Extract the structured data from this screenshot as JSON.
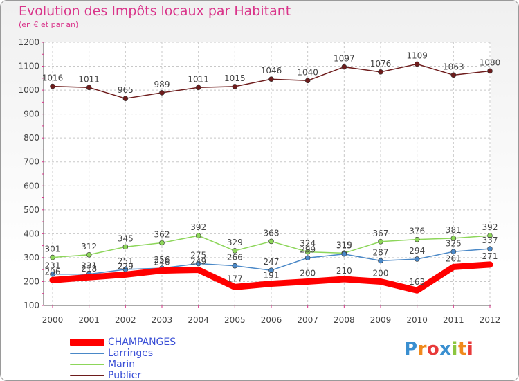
{
  "chart_data": {
    "type": "line",
    "title": "Evolution des Impôts locaux par Habitant",
    "subtitle": "(en € et par an)",
    "xlabel": "",
    "ylabel": "",
    "ylim": [
      100,
      1200
    ],
    "yticks": [
      "100",
      "200",
      "300",
      "400",
      "500",
      "600",
      "700",
      "800",
      "900",
      "1000",
      "1100",
      "1200"
    ],
    "categories": [
      "2000",
      "2001",
      "2002",
      "2003",
      "2004",
      "2005",
      "2006",
      "2007",
      "2008",
      "2009",
      "2010",
      "2011",
      "2012"
    ],
    "series": [
      {
        "name": "CHAMPANGES",
        "color": "#ff0000",
        "values": [
          206,
          218,
          229,
          246,
          249,
          177,
          191,
          200,
          210,
          200,
          163,
          261,
          271
        ],
        "labels": [
          "206",
          "218",
          "229",
          "246",
          "249",
          "177",
          "191",
          "200",
          "210",
          "200",
          "163",
          "261",
          "271"
        ]
      },
      {
        "name": "Larringes",
        "color": "#4a88c7",
        "values": [
          231,
          231,
          251,
          256,
          275,
          266,
          247,
          299,
          315,
          287,
          294,
          325,
          337
        ],
        "labels": [
          "231",
          "231",
          "251",
          "256",
          "275",
          "266",
          "247",
          "299",
          "315",
          "287",
          "294",
          "325",
          "337"
        ]
      },
      {
        "name": "Marin",
        "color": "#8dd65a",
        "values": [
          301,
          312,
          345,
          362,
          392,
          329,
          368,
          324,
          319,
          367,
          376,
          381,
          392
        ],
        "labels": [
          "301",
          "312",
          "345",
          "362",
          "392",
          "329",
          "368",
          "324",
          "319",
          "367",
          "376",
          "381",
          "392"
        ]
      },
      {
        "name": "Publier",
        "color": "#6e1c1c",
        "values": [
          1016,
          1011,
          965,
          989,
          1011,
          1015,
          1046,
          1040,
          1097,
          1076,
          1109,
          1063,
          1080
        ],
        "labels": [
          "1016",
          "1011",
          "965",
          "989",
          "1011",
          "1015",
          "1046",
          "1040",
          "1097",
          "1076",
          "1109",
          "1063",
          "1080"
        ]
      }
    ],
    "legend_position": "bottom-left"
  },
  "brand": {
    "letters": [
      "P",
      "r",
      "o",
      "x",
      "i",
      "t",
      "i"
    ]
  },
  "colors": {
    "title": "#d9348a",
    "legend_text": "#3a4fd6",
    "grid": "#c8c8c8",
    "axis_text": "#444444"
  }
}
